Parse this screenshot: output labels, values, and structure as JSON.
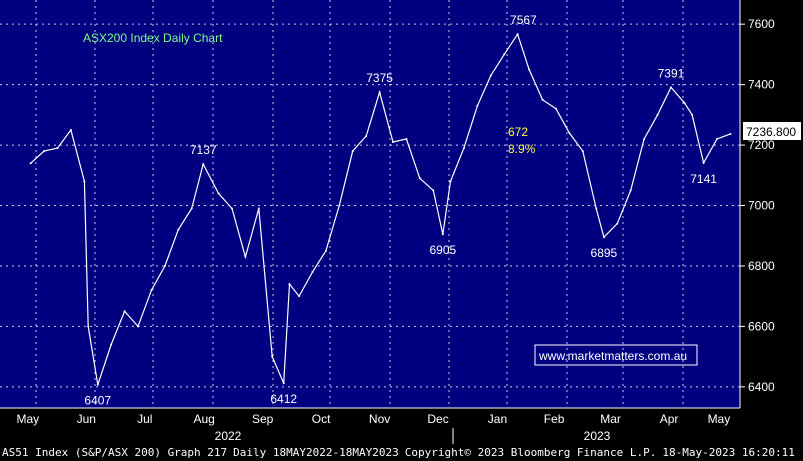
{
  "chart_data": {
    "type": "line",
    "title": "ASX200 Index Daily Chart",
    "xlabel": "",
    "ylabel": "",
    "ylim": [
      6330,
      7680
    ],
    "grid": true,
    "x_ticks": [
      "May",
      "Jun",
      "Jul",
      "Aug",
      "Sep",
      "Oct",
      "Nov",
      "Dec",
      "Jan",
      "Feb",
      "Mar",
      "Apr",
      "May"
    ],
    "year_labels": [
      "2022",
      "2023"
    ],
    "y_ticks": [
      6400,
      6600,
      6800,
      7000,
      7200,
      7400,
      7600
    ],
    "last_value_label": "7236.800",
    "x": [
      "2022-05-18",
      "2022-05-25",
      "2022-06-01",
      "2022-06-08",
      "2022-06-15",
      "2022-06-17",
      "2022-06-22",
      "2022-06-29",
      "2022-07-06",
      "2022-07-13",
      "2022-07-20",
      "2022-07-27",
      "2022-08-03",
      "2022-08-10",
      "2022-08-16",
      "2022-08-24",
      "2022-08-31",
      "2022-09-07",
      "2022-09-14",
      "2022-09-21",
      "2022-09-27",
      "2022-09-30",
      "2022-10-05",
      "2022-10-12",
      "2022-10-19",
      "2022-10-26",
      "2022-11-02",
      "2022-11-09",
      "2022-11-16",
      "2022-11-23",
      "2022-11-30",
      "2022-12-07",
      "2022-12-14",
      "2022-12-19",
      "2022-12-23",
      "2022-12-30",
      "2023-01-06",
      "2023-01-13",
      "2023-01-20",
      "2023-01-27",
      "2023-02-02",
      "2023-02-09",
      "2023-02-16",
      "2023-02-23",
      "2023-03-02",
      "2023-03-09",
      "2023-03-13",
      "2023-03-20",
      "2023-03-27",
      "2023-04-03",
      "2023-04-10",
      "2023-04-17",
      "2023-04-24",
      "2023-04-28",
      "2023-05-04",
      "2023-05-11",
      "2023-05-18"
    ],
    "series": [
      {
        "values": [
          7140,
          7180,
          7190,
          7250,
          7080,
          6600,
          6407,
          6540,
          6650,
          6600,
          6720,
          6800,
          6920,
          6990,
          7137,
          7040,
          6990,
          6830,
          6990,
          6500,
          6412,
          6740,
          6700,
          6780,
          6850,
          7000,
          7180,
          7230,
          7375,
          7210,
          7220,
          7090,
          7050,
          6905,
          7080,
          7190,
          7330,
          7430,
          7500,
          7567,
          7450,
          7350,
          7320,
          7240,
          7180,
          6990,
          6895,
          6940,
          7050,
          7220,
          7300,
          7391,
          7340,
          7300,
          7141,
          7220,
          7237
        ]
      }
    ],
    "annotations": [
      {
        "text": "7567",
        "x": "2023-01-30",
        "y": 7567,
        "pos": "above"
      },
      {
        "text": "7375",
        "x": "2022-11-16",
        "y": 7375,
        "pos": "above"
      },
      {
        "text": "7391",
        "x": "2023-04-17",
        "y": 7391,
        "pos": "above"
      },
      {
        "text": "7137",
        "x": "2022-08-16",
        "y": 7137,
        "pos": "above"
      },
      {
        "text": "6905",
        "x": "2022-12-19",
        "y": 6905,
        "pos": "below"
      },
      {
        "text": "6895",
        "x": "2023-03-13",
        "y": 6895,
        "pos": "below"
      },
      {
        "text": "7141",
        "x": "2023-05-04",
        "y": 7141,
        "pos": "below"
      },
      {
        "text": "6407",
        "x": "2022-06-22",
        "y": 6407,
        "pos": "below"
      },
      {
        "text": "6412",
        "x": "2022-09-27",
        "y": 6412,
        "pos": "below"
      }
    ],
    "move_labels": [
      "672",
      "8.9%"
    ],
    "watermark": "www.marketmatters.com.au"
  },
  "footer": {
    "security": "AS51 Index (S&P/ASX 200) Graph 217",
    "range": "Daily 18MAY2022-18MAY2023",
    "copyright": "Copyright© 2023 Bloomberg Finance L.P.",
    "timestamp": "18-May-2023 16:20:11"
  },
  "colors": {
    "background": "#000080",
    "grid": "#ffffff",
    "series": "#ffffff",
    "title": "#7cfc8a",
    "move_label": "#ffff33",
    "axis_bg": "#000000",
    "axis_text": "#ffffff",
    "annotation_text": "#ffffff"
  }
}
